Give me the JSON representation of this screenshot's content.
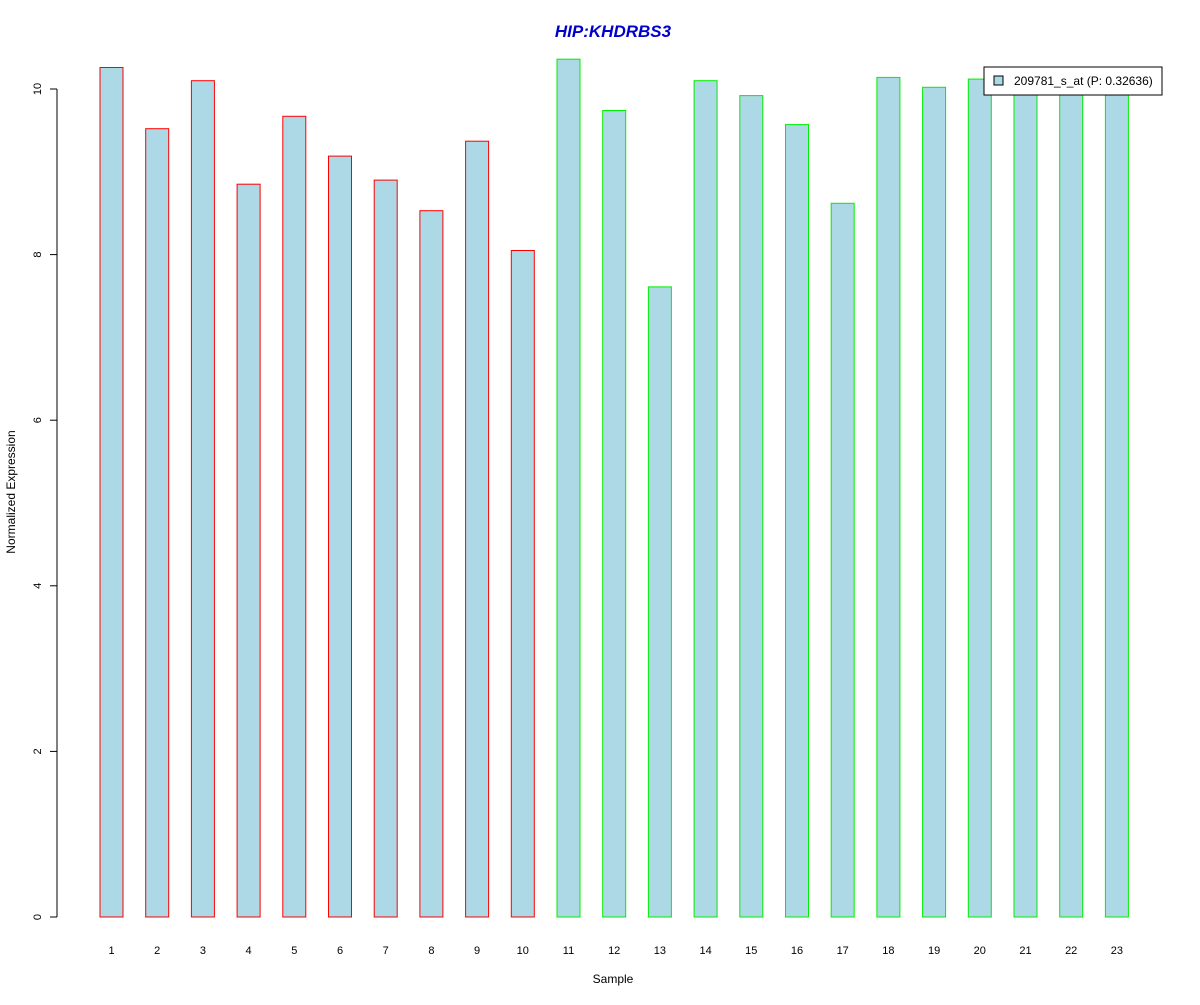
{
  "chart_data": {
    "type": "bar",
    "title": "HIP:KHDRBS3",
    "xlabel": "Sample",
    "ylabel": "Normalized Expression",
    "categories": [
      "1",
      "2",
      "3",
      "4",
      "5",
      "6",
      "7",
      "8",
      "9",
      "10",
      "11",
      "12",
      "13",
      "14",
      "15",
      "16",
      "17",
      "18",
      "19",
      "20",
      "21",
      "22",
      "23"
    ],
    "series": [
      {
        "name": "209781_s_at (P: 0.32636)",
        "values": [
          10.26,
          9.52,
          10.1,
          8.85,
          9.67,
          9.19,
          8.9,
          8.53,
          9.37,
          8.05,
          10.36,
          9.74,
          7.61,
          10.1,
          9.92,
          9.57,
          8.62,
          10.14,
          10.02,
          10.12,
          9.99,
          9.98,
          9.97
        ]
      }
    ],
    "groups": [
      {
        "samples": [
          "1",
          "2",
          "3",
          "4",
          "5",
          "6",
          "7",
          "8",
          "9",
          "10"
        ],
        "border_color": "#ff0000"
      },
      {
        "samples": [
          "11",
          "12",
          "13",
          "14",
          "15",
          "16",
          "17",
          "18",
          "19",
          "20",
          "21",
          "22",
          "23"
        ],
        "border_color": "#00ee00"
      }
    ],
    "ylim": [
      0,
      10.5
    ],
    "yticks": [
      0,
      2,
      4,
      6,
      8,
      10
    ],
    "grid": false,
    "legend_position": "top-right",
    "colors": {
      "bar_fill": "#add8e6",
      "title": "#0000cc",
      "axis": "#000000"
    }
  }
}
